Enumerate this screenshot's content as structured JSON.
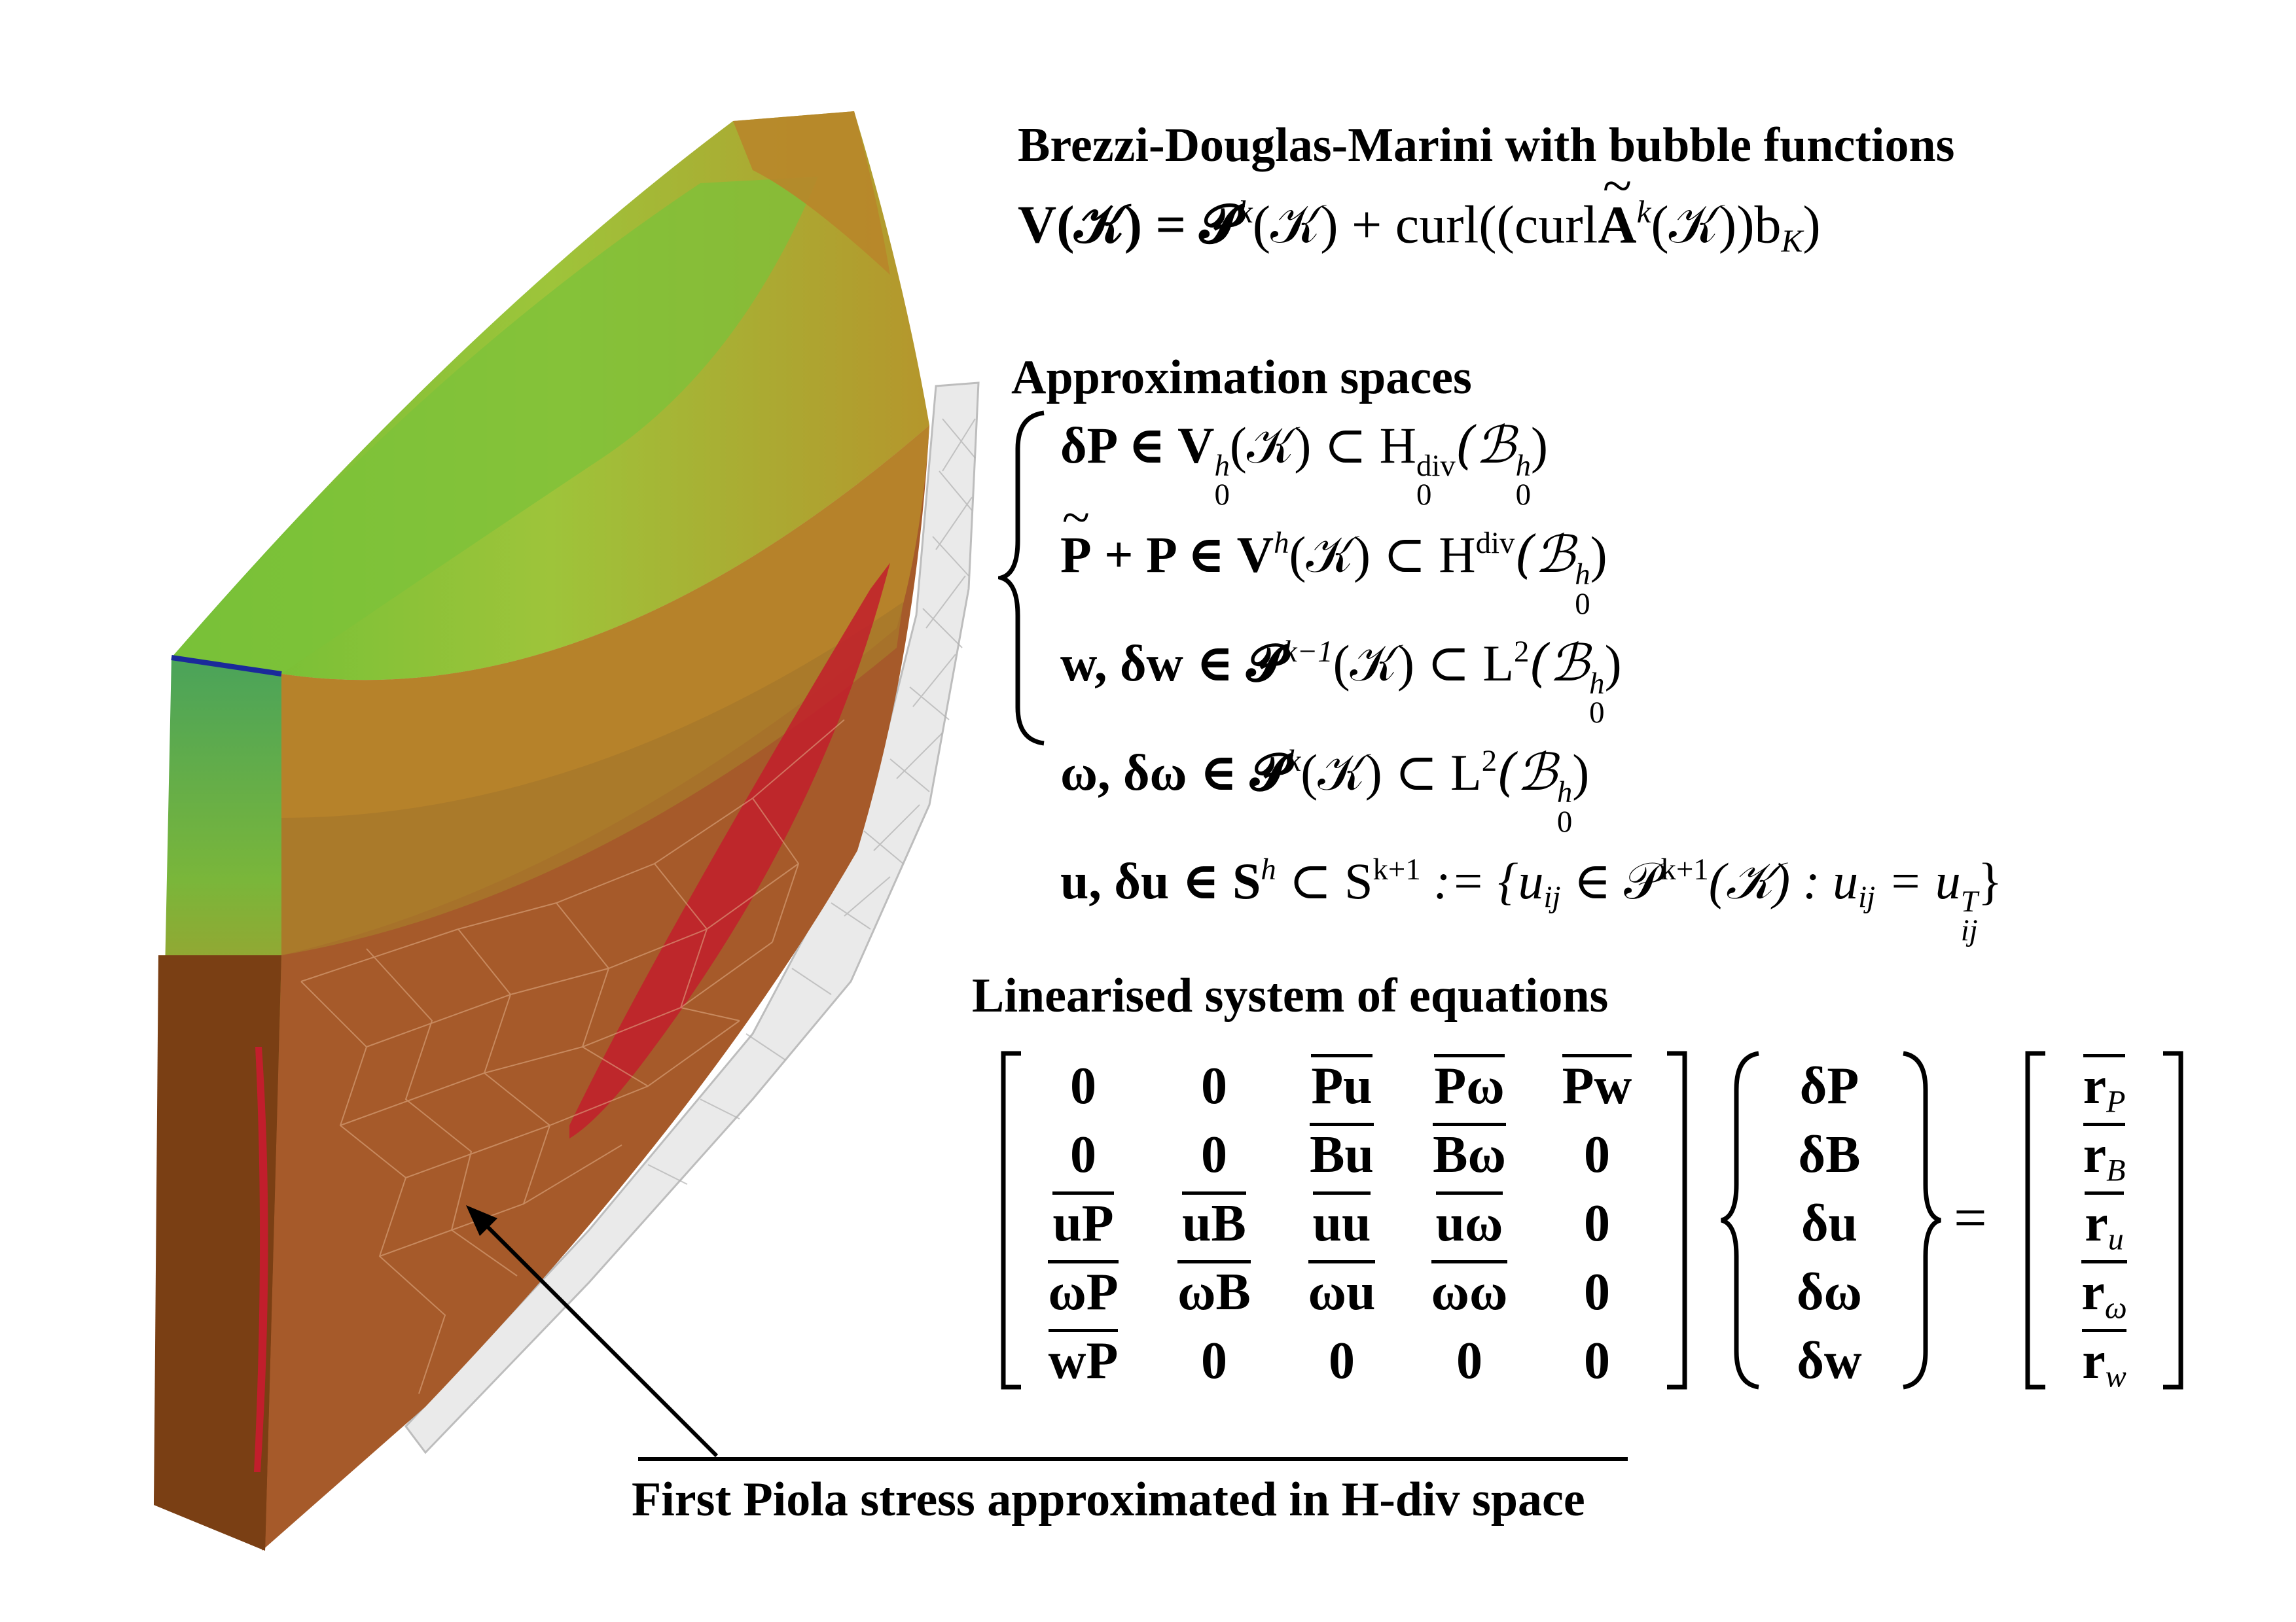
{
  "title_bdm": "Brezzi-Douglas-Marini with bubble functions",
  "bdm_formula": {
    "lhs": "V(𝒦) = ",
    "P": "𝓟",
    "k": "k",
    "mid": "(𝒦) + curl((curl",
    "A": "A",
    "k2": "k",
    "end": "(𝒦))b",
    "K": "K",
    "close": ")"
  },
  "title_spaces": "Approximation spaces",
  "spaces": [
    {
      "text": "δP ∈ V",
      "sup": "h",
      "sub": "0",
      "rest": "(𝒦) ⊂ H",
      "sup2": "div",
      "sub2": "0",
      "space": "(ℬ",
      "sup3": "h",
      "sub3": "0",
      "end": ")"
    },
    {
      "text": "P + P ∈ V",
      "sup": "h",
      "rest": "(𝒦) ⊂ H",
      "sup2": "div",
      "space": "(ℬ",
      "sup3": "h",
      "sub3": "0",
      "end": ")"
    },
    {
      "text": "w, δw ∈ 𝓟",
      "sup": "k−1",
      "rest": "(𝒦) ⊂ L",
      "sup2": "2",
      "space": "(ℬ",
      "sup3": "h",
      "sub3": "0",
      "end": ")"
    },
    {
      "text": "ω, δω ∈ 𝓟",
      "sup": "k",
      "rest": "(𝒦) ⊂ L",
      "sup2": "2",
      "space": "(ℬ",
      "sup3": "h",
      "sub3": "0",
      "end": ")"
    },
    {
      "text": "u, δu ∈ S",
      "sup": "h",
      "rest": " ⊂ S",
      "sup2": "k+1",
      "space": " := {u",
      "sub_ij": "ij",
      "tail": " ∈ 𝒫",
      "sup4": "k+1",
      "tail2": "(𝒦) : u",
      "sub_ij2": "ij",
      "tail3": " = u",
      "supT": "T",
      "sub_ij3": "ij",
      "end": "}"
    }
  ],
  "title_system": "Linearised system of equations",
  "matrix": [
    [
      "0",
      "0",
      "Pu",
      "Pω",
      "Pw"
    ],
    [
      "0",
      "0",
      "Bu",
      "Bω",
      "0"
    ],
    [
      "uP",
      "uB",
      "uu",
      "uω",
      "0"
    ],
    [
      "ωP",
      "ωB",
      "ωu",
      "ωω",
      "0"
    ],
    [
      "wP",
      "0",
      "0",
      "0",
      "0"
    ]
  ],
  "unknowns": [
    "δP",
    "δB",
    "δu",
    "δω",
    "δw"
  ],
  "equals": "=",
  "rhs": [
    {
      "r": "r",
      "sub": "P"
    },
    {
      "r": "r",
      "sub": "B"
    },
    {
      "r": "r",
      "sub": "u"
    },
    {
      "r": "r",
      "sub": "ω"
    },
    {
      "r": "r",
      "sub": "w"
    }
  ],
  "caption": "First Piola stress approximated in H-div space",
  "colors": {
    "brown": "#8b4a1c",
    "orange_brown": "#a65a2a",
    "olive": "#b8862a",
    "yellow_green": "#b5c23a",
    "green": "#7cc23a",
    "red": "#c21e2c",
    "blue": "#1a2a9a",
    "mesh_grey": "#cfcfcf"
  }
}
